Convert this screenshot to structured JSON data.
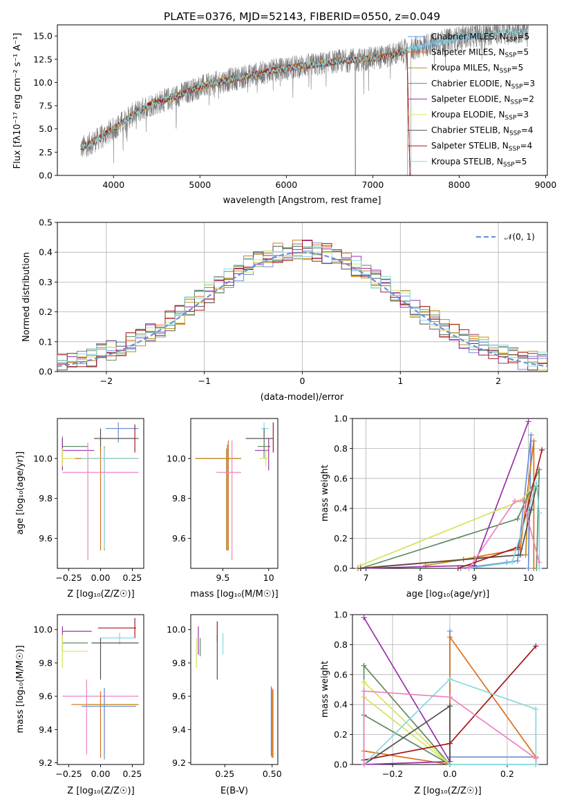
{
  "colors": [
    "#6a8fd8",
    "#d9701e",
    "#c28a14",
    "#5e8a61",
    "#9a2fa9",
    "#d3e45a",
    "#505050",
    "#a4171d",
    "#84d8de",
    "#ee82c0"
  ],
  "colors_note_order": [
    "Chabrier MILES",
    "Salpeter MILES",
    "Kroupa MILES",
    "Chabrier ELODIE",
    "Salpeter ELODIE",
    "Kroupa ELODIE",
    "Chabrier STELIB",
    "Salpeter STELIB",
    "Kroupa STELIB",
    "extra"
  ],
  "chart_data": [
    {
      "id": "spectrum",
      "type": "line",
      "title": "PLATE=0376, MJD=52143, FIBERID=0550, z=0.049",
      "xlabel": "wavelength [Angstrom, rest frame]",
      "ylabel": "Flux [fλ10⁻¹⁷ erg cm⁻² s⁻¹ A⁻¹]",
      "xlim": [
        3350,
        9020
      ],
      "ylim": [
        0,
        16.2
      ],
      "xticks": [
        4000,
        5000,
        6000,
        7000,
        8000,
        9000
      ],
      "yticks": [
        0.0,
        2.5,
        5.0,
        7.5,
        10.0,
        12.5,
        15.0
      ],
      "legend_position": "top-right",
      "data_trend": {
        "x": [
          3600,
          3800,
          4000,
          4200,
          4400,
          4600,
          4800,
          5000,
          5200,
          5400,
          5600,
          5800,
          6000,
          6200,
          6400,
          6600,
          6800,
          7000,
          7200,
          7400,
          7600,
          7800,
          8000,
          8200,
          8400,
          8600,
          8800
        ],
        "y": [
          2.8,
          3.8,
          5.0,
          6.4,
          7.5,
          8.1,
          8.8,
          9.5,
          10.0,
          10.4,
          10.8,
          11.2,
          11.5,
          11.8,
          12.0,
          12.3,
          12.4,
          12.6,
          12.9,
          13.5,
          14.0,
          14.4,
          14.8,
          15.1,
          15.3,
          15.4,
          15.5
        ]
      },
      "series": [
        {
          "name": "Chabrier MILES",
          "nssp": "5",
          "xmax": 8200
        },
        {
          "name": "Salpeter MILES",
          "nssp": "5",
          "xmax": 7400
        },
        {
          "name": "Kroupa MILES",
          "nssp": "5",
          "xmax": 7400
        },
        {
          "name": "Chabrier ELODIE",
          "nssp": "3",
          "xmax": 6800
        },
        {
          "name": "Salpeter ELODIE",
          "nssp": "2",
          "xmax": 6800
        },
        {
          "name": "Kroupa ELODIE",
          "nssp": "3",
          "xmax": 6800
        },
        {
          "name": "Chabrier STELIB",
          "nssp": "4",
          "xmax": 7400
        },
        {
          "name": "Salpeter STELIB",
          "nssp": "4",
          "xmax": 7400
        },
        {
          "name": "Kroupa STELIB",
          "nssp": "5",
          "xmax": 8800
        }
      ]
    },
    {
      "id": "residual-histogram",
      "type": "line",
      "xlabel": "(data-model)/error",
      "ylabel": "Normed distribution",
      "xlim": [
        -2.5,
        2.5
      ],
      "ylim": [
        0,
        0.5
      ],
      "xticks": [
        -2,
        -1,
        0,
        1,
        2
      ],
      "xtick_labels": [
        "−2",
        "−1",
        "0",
        "1",
        "2"
      ],
      "yticks": [
        0.0,
        0.1,
        0.2,
        0.3,
        0.4,
        0.5
      ],
      "grid": true,
      "legend_position": "top-right",
      "gaussian_label": "𝒩(0, 1)",
      "bin_width": 0.1,
      "gaussian": {
        "mean": 0,
        "sigma": 1
      }
    },
    {
      "id": "age-vs-z",
      "type": "scatter",
      "xlabel": "Z [log₁₀(Z/Z☉)]",
      "ylabel": "age  [log₁₀(age/yr)]",
      "xlim": [
        -0.34,
        0.34
      ],
      "ylim": [
        9.45,
        10.2
      ],
      "xticks": [
        -0.25,
        0.0,
        0.25
      ],
      "xtick_labels": [
        "−0.25",
        "0.00",
        "0.25"
      ],
      "yticks": [
        9.6,
        9.8,
        10.0
      ],
      "errorbars": [
        {
          "c": 0,
          "x": 0.14,
          "y": 10.15,
          "x0": 0.04,
          "x1": 0.3,
          "y0": 10.08,
          "y1": 10.18
        },
        {
          "c": 7,
          "x": 0.27,
          "y": 10.1,
          "x0": -0.05,
          "x1": 0.27,
          "y0": 10.03,
          "y1": 10.17
        },
        {
          "c": 6,
          "x": 0.0,
          "y": 10.1,
          "x0": -0.05,
          "x1": 0.3,
          "y0": 10.04,
          "y1": 10.15
        },
        {
          "c": 3,
          "x": -0.3,
          "y": 10.06,
          "x0": -0.3,
          "x1": -0.1,
          "y0": 10.0,
          "y1": 10.11
        },
        {
          "c": 4,
          "x": -0.3,
          "y": 10.04,
          "x0": -0.3,
          "x1": -0.05,
          "y0": 9.94,
          "y1": 10.1
        },
        {
          "c": 5,
          "x": -0.3,
          "y": 10.0,
          "x0": -0.3,
          "x1": 0.0,
          "y0": 9.96,
          "y1": 10.05
        },
        {
          "c": 1,
          "x": 0.0,
          "y": 10.0,
          "x0": -0.2,
          "x1": 0.3,
          "y0": 9.54,
          "y1": 10.06
        },
        {
          "c": 2,
          "x": 0.03,
          "y": 10.0,
          "x0": -0.1,
          "x1": 0.3,
          "y0": 9.54,
          "y1": 10.06
        },
        {
          "c": 8,
          "x": 0.03,
          "y": 10.0,
          "x0": -0.15,
          "x1": 0.3,
          "y0": 9.55,
          "y1": 10.05
        },
        {
          "c": 9,
          "x": -0.1,
          "y": 9.93,
          "x0": -0.3,
          "x1": 0.3,
          "y0": 9.49,
          "y1": 10.08
        }
      ]
    },
    {
      "id": "age-vs-mass",
      "type": "scatter",
      "xlabel": "mass [log₁₀(M/M☉)]",
      "xlim": [
        9.15,
        10.1
      ],
      "ylim": [
        9.45,
        10.2
      ],
      "xticks": [
        9.5,
        10.0
      ],
      "yticks": [
        9.6,
        9.8,
        10.0
      ],
      "errorbars": [
        {
          "c": 8,
          "x": 9.95,
          "y": 10.15,
          "x0": 9.92,
          "x1": 10.0,
          "y0": 10.07,
          "y1": 10.18
        },
        {
          "c": 7,
          "x": 10.05,
          "y": 10.1,
          "x0": 9.75,
          "x1": 10.05,
          "y0": 10.03,
          "y1": 10.18
        },
        {
          "c": 6,
          "x": 9.95,
          "y": 10.1,
          "x0": 9.75,
          "x1": 10.05,
          "y0": 10.04,
          "y1": 10.15
        },
        {
          "c": 3,
          "x": 9.95,
          "y": 10.06,
          "x0": 9.88,
          "x1": 10.02,
          "y0": 10.0,
          "y1": 10.11
        },
        {
          "c": 4,
          "x": 10.0,
          "y": 10.04,
          "x0": 9.85,
          "x1": 10.0,
          "y0": 9.94,
          "y1": 10.1
        },
        {
          "c": 5,
          "x": 9.97,
          "y": 10.0,
          "x0": 9.9,
          "x1": 10.0,
          "y0": 9.96,
          "y1": 10.05
        },
        {
          "c": 0,
          "x": 9.55,
          "y": 10.0,
          "x0": 9.2,
          "x1": 9.7,
          "y0": 9.54,
          "y1": 10.07
        },
        {
          "c": 1,
          "x": 9.56,
          "y": 10.0,
          "x0": 9.2,
          "x1": 9.7,
          "y0": 9.54,
          "y1": 10.09
        },
        {
          "c": 2,
          "x": 9.54,
          "y": 10.0,
          "x0": 9.2,
          "x1": 9.7,
          "y0": 9.54,
          "y1": 10.05
        },
        {
          "c": 9,
          "x": 9.6,
          "y": 9.93,
          "x0": 9.43,
          "x1": 9.7,
          "y0": 9.49,
          "y1": 10.09
        }
      ]
    },
    {
      "id": "mass-weight-vs-age",
      "type": "line",
      "xlabel": "age  [log₁₀(age/yr)]",
      "ylabel": "mass weight",
      "xlim": [
        6.75,
        10.35
      ],
      "ylim": [
        0,
        1.0
      ],
      "xticks": [
        7,
        8,
        9,
        10
      ],
      "yticks": [
        0.0,
        0.2,
        0.4,
        0.6,
        0.8,
        1.0
      ],
      "grid": true,
      "series": [
        {
          "c": 0,
          "x": [
            8.75,
            9.6,
            9.8,
            10.05,
            10.0
          ],
          "y": [
            0.0,
            0.04,
            0.05,
            0.89,
            0.0
          ]
        },
        {
          "c": 1,
          "x": [
            6.85,
            8.8,
            9.85,
            10.1,
            10.1
          ],
          "y": [
            0.0,
            0.06,
            0.13,
            0.85,
            0.0
          ]
        },
        {
          "c": 2,
          "x": [
            8.1,
            9.0,
            9.95,
            10.0
          ],
          "y": [
            0.02,
            0.07,
            0.09,
            0.5
          ]
        },
        {
          "c": 3,
          "x": [
            6.9,
            9.8,
            10.2,
            10.15
          ],
          "y": [
            0.0,
            0.33,
            0.66,
            0.0
          ]
        },
        {
          "c": 4,
          "x": [
            6.9,
            9.0,
            10.0
          ],
          "y": [
            0.0,
            0.02,
            0.98
          ]
        },
        {
          "c": 5,
          "x": [
            6.9,
            9.85,
            10.1
          ],
          "y": [
            0.02,
            0.45,
            0.55
          ]
        },
        {
          "c": 6,
          "x": [
            6.9,
            9.85,
            10.05,
            10.15
          ],
          "y": [
            0.0,
            0.09,
            0.39,
            0.55
          ]
        },
        {
          "c": 7,
          "x": [
            8.7,
            9.8,
            10.25
          ],
          "y": [
            0.0,
            0.14,
            0.79
          ]
        },
        {
          "c": 8,
          "x": [
            8.9,
            9.7,
            10.15,
            10.2,
            10.2
          ],
          "y": [
            0.0,
            0.04,
            0.57,
            0.37,
            0.0
          ]
        },
        {
          "c": 9,
          "x": [
            8.9,
            9.75,
            9.9,
            10.2
          ],
          "y": [
            0.0,
            0.45,
            0.45,
            0.04
          ]
        }
      ]
    },
    {
      "id": "mass-vs-z",
      "type": "scatter",
      "xlabel": "Z [log₁₀(Z/Z☉)]",
      "ylabel": "mass [log₁₀(M/M☉)]",
      "xlim": [
        -0.34,
        0.34
      ],
      "ylim": [
        9.19,
        10.09
      ],
      "xticks": [
        -0.25,
        0.0,
        0.25
      ],
      "xtick_labels": [
        "−0.25",
        "0.00",
        "0.25"
      ],
      "yticks": [
        9.2,
        9.4,
        9.6,
        9.8,
        10.0
      ],
      "errorbars": [
        {
          "c": 7,
          "x": 0.27,
          "y": 10.01,
          "x0": -0.02,
          "x1": 0.28,
          "y0": 9.95,
          "y1": 10.07
        },
        {
          "c": 4,
          "x": -0.3,
          "y": 9.99,
          "x0": -0.3,
          "x1": -0.07,
          "y0": 9.95,
          "y1": 10.02
        },
        {
          "c": 8,
          "x": 0.15,
          "y": 9.95,
          "x0": 0.0,
          "x1": 0.28,
          "y0": 9.91,
          "y1": 9.98
        },
        {
          "c": 3,
          "x": -0.3,
          "y": 9.92,
          "x0": -0.3,
          "x1": -0.1,
          "y0": 9.87,
          "y1": 9.97
        },
        {
          "c": 6,
          "x": 0.0,
          "y": 9.92,
          "x0": -0.07,
          "x1": 0.3,
          "y0": 9.7,
          "y1": 9.95
        },
        {
          "c": 5,
          "x": -0.3,
          "y": 9.87,
          "x0": -0.3,
          "x1": -0.1,
          "y0": 9.77,
          "y1": 9.97
        },
        {
          "c": 9,
          "x": -0.11,
          "y": 9.6,
          "x0": -0.3,
          "x1": 0.3,
          "y0": 9.25,
          "y1": 9.7
        },
        {
          "c": 1,
          "x": 0.0,
          "y": 9.55,
          "x0": -0.23,
          "x1": 0.3,
          "y0": 9.23,
          "y1": 9.63
        },
        {
          "c": 2,
          "x": 0.03,
          "y": 9.55,
          "x0": -0.1,
          "x1": 0.3,
          "y0": 9.25,
          "y1": 9.65
        },
        {
          "c": 0,
          "x": 0.03,
          "y": 9.54,
          "x0": -0.15,
          "x1": 0.28,
          "y0": 9.22,
          "y1": 9.65
        }
      ]
    },
    {
      "id": "mass-vs-ebv",
      "type": "scatter",
      "xlabel": "E(B-V)",
      "xlim": [
        0.07,
        0.53
      ],
      "ylim": [
        9.19,
        10.09
      ],
      "xticks": [
        0.25,
        0.5
      ],
      "xtick_labels": [
        "0.25",
        "0.50"
      ],
      "yticks": [
        9.2,
        9.4,
        9.6,
        9.8,
        10.0
      ],
      "errorbars": [
        {
          "c": 4,
          "x": 0.11,
          "y": 9.99,
          "x0": 0.11,
          "x1": 0.11,
          "y0": 9.85,
          "y1": 10.02
        },
        {
          "c": 7,
          "x": 0.21,
          "y": 10.0,
          "x0": 0.21,
          "x1": 0.21,
          "y0": 9.93,
          "y1": 10.05
        },
        {
          "c": 8,
          "x": 0.24,
          "y": 9.95,
          "x0": 0.24,
          "x1": 0.24,
          "y0": 9.85,
          "y1": 9.98
        },
        {
          "c": 3,
          "x": 0.12,
          "y": 9.9,
          "x0": 0.12,
          "x1": 0.12,
          "y0": 9.84,
          "y1": 9.95
        },
        {
          "c": 6,
          "x": 0.21,
          "y": 9.92,
          "x0": 0.21,
          "x1": 0.21,
          "y0": 9.7,
          "y1": 9.97
        },
        {
          "c": 5,
          "x": 0.1,
          "y": 9.85,
          "x0": 0.1,
          "x1": 0.1,
          "y0": 9.77,
          "y1": 9.95
        },
        {
          "c": 9,
          "x": 0.5,
          "y": 9.55,
          "x0": 0.5,
          "x1": 0.5,
          "y0": 9.24,
          "y1": 9.65
        },
        {
          "c": 1,
          "x": 0.5,
          "y": 9.55,
          "x0": 0.5,
          "x1": 0.5,
          "y0": 9.23,
          "y1": 9.64
        },
        {
          "c": 2,
          "x": 0.505,
          "y": 9.5,
          "x0": 0.505,
          "x1": 0.505,
          "y0": 9.23,
          "y1": 9.64
        },
        {
          "c": 0,
          "x": 0.495,
          "y": 9.5,
          "x0": 0.495,
          "x1": 0.495,
          "y0": 9.24,
          "y1": 9.66
        }
      ]
    },
    {
      "id": "mass-weight-vs-z",
      "type": "line",
      "xlabel": "Z [log₁₀(Z/Z☉)]",
      "ylabel": "mass weight",
      "xlim": [
        -0.34,
        0.34
      ],
      "ylim": [
        0,
        1.0
      ],
      "xticks": [
        -0.2,
        0.0,
        0.2
      ],
      "xtick_labels": [
        "−0.2",
        "0.0",
        "0.2"
      ],
      "yticks": [
        0.0,
        0.2,
        0.4,
        0.6,
        0.8,
        1.0
      ],
      "grid": true,
      "series": [
        {
          "c": 0,
          "x": [
            0.0,
            0.0,
            0.0,
            0.3,
            0.3
          ],
          "y": [
            0.0,
            0.89,
            0.05,
            0.05,
            0.0
          ]
        },
        {
          "c": 1,
          "x": [
            -0.3,
            0.0,
            0.0,
            0.3,
            0.3
          ],
          "y": [
            0.09,
            0.0,
            0.85,
            0.05,
            0.0
          ]
        },
        {
          "c": 3,
          "x": [
            -0.3,
            -0.3,
            0.0,
            -0.3,
            -0.3
          ],
          "y": [
            0.0,
            0.66,
            0.0,
            0.33,
            0.0
          ]
        },
        {
          "c": 4,
          "x": [
            -0.3,
            0.0,
            -0.3,
            -0.3
          ],
          "y": [
            0.98,
            0.02,
            0.0,
            0.0
          ]
        },
        {
          "c": 5,
          "x": [
            -0.3,
            -0.3,
            0.0,
            -0.3
          ],
          "y": [
            0.0,
            0.55,
            0.0,
            0.45
          ]
        },
        {
          "c": 6,
          "x": [
            -0.3,
            0.0,
            0.0
          ],
          "y": [
            0.0,
            0.39,
            0.0
          ]
        },
        {
          "c": 7,
          "x": [
            -0.3,
            0.0,
            0.3
          ],
          "y": [
            0.03,
            0.14,
            0.79
          ]
        },
        {
          "c": 8,
          "x": [
            -0.3,
            0.0,
            0.3,
            0.3,
            0.0
          ],
          "y": [
            0.0,
            0.57,
            0.37,
            0.0,
            0.0
          ]
        },
        {
          "c": 9,
          "x": [
            -0.3,
            -0.3,
            0.0,
            0.3
          ],
          "y": [
            0.0,
            0.49,
            0.45,
            0.04
          ]
        }
      ]
    }
  ]
}
